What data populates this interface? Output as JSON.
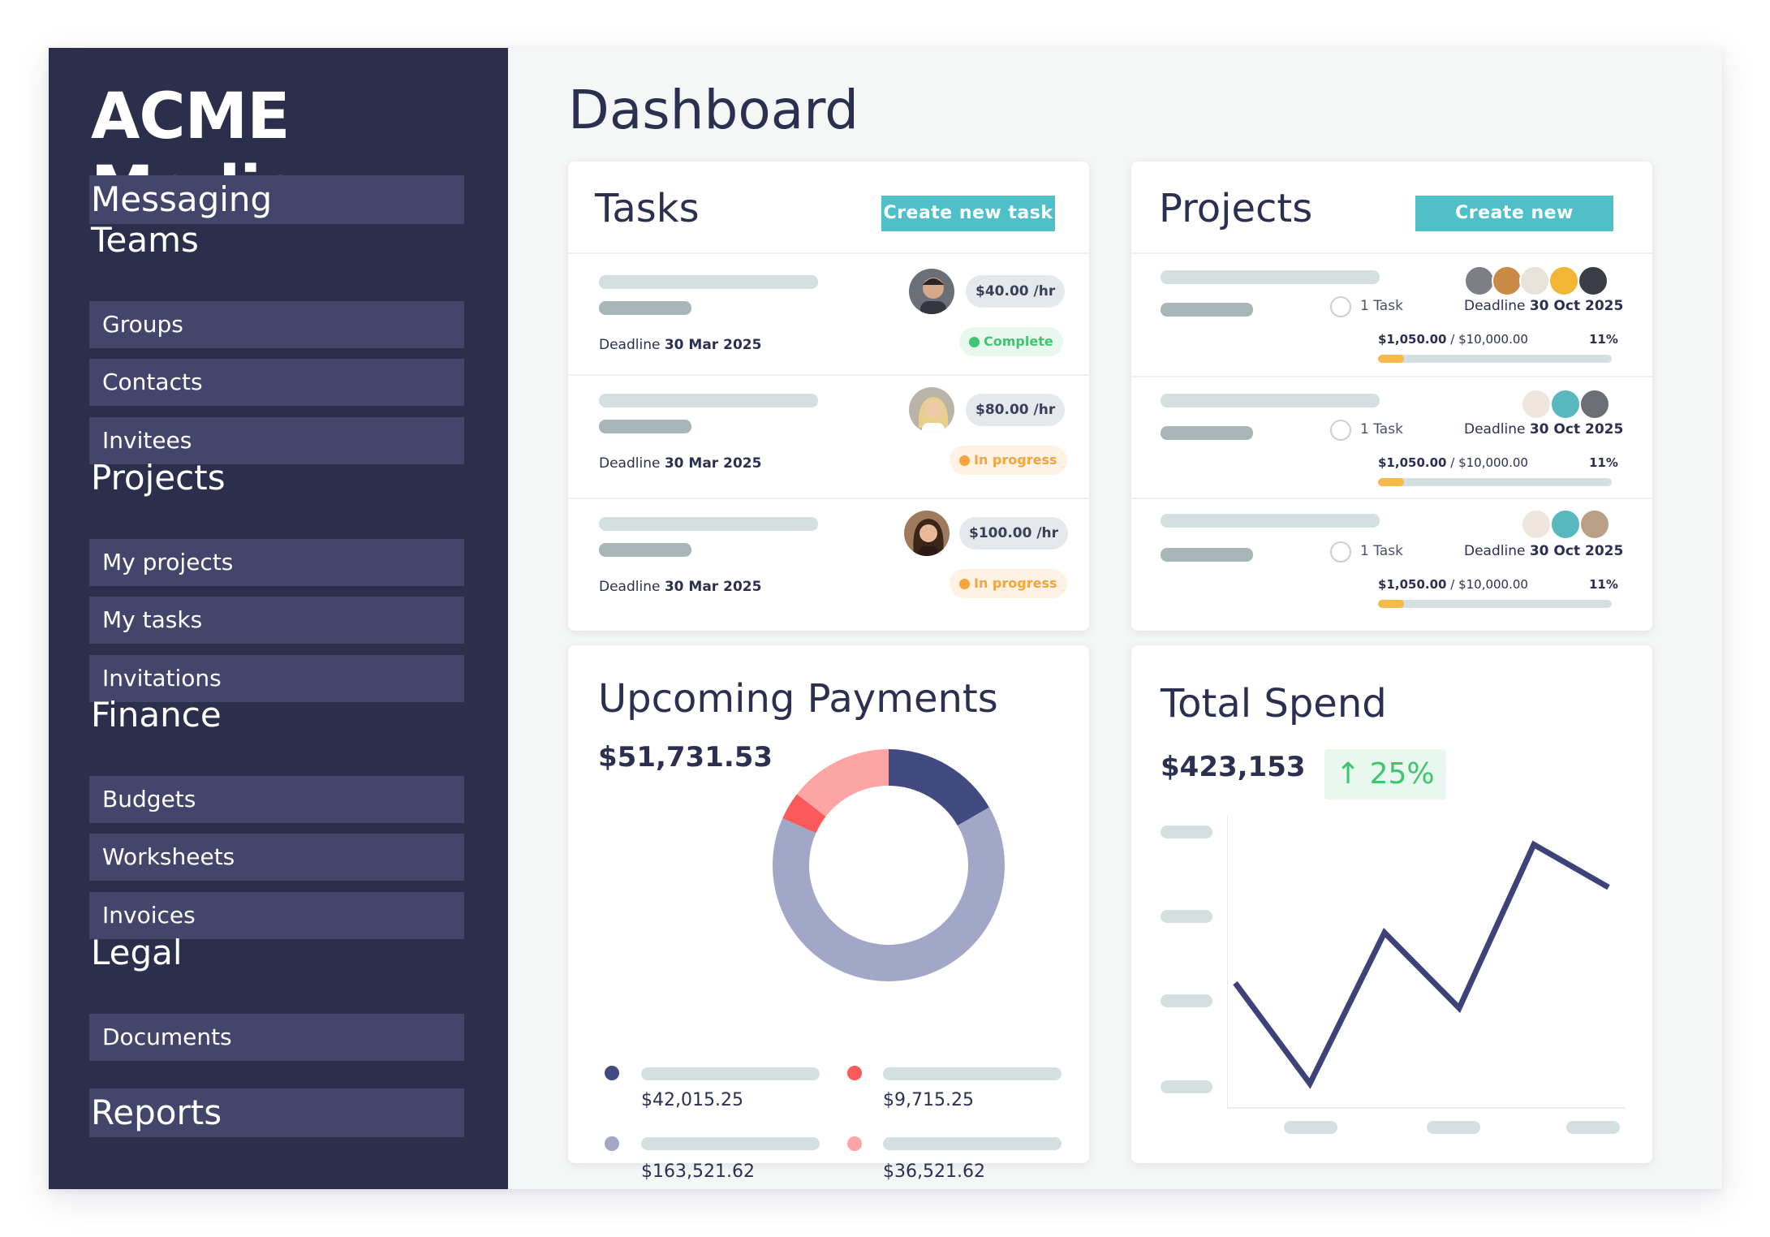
{
  "app": {
    "brand": "ACME Media",
    "page_title": "Dashboard"
  },
  "sidebar": {
    "messaging": "Messaging",
    "teams": "Teams",
    "groups": "Groups",
    "contacts": "Contacts",
    "invitees": "Invitees",
    "projects": "Projects",
    "my_projects": "My projects",
    "my_tasks": "My tasks",
    "invitations": "Invitations",
    "finance": "Finance",
    "budgets": "Budgets",
    "worksheets": "Worksheets",
    "invoices": "Invoices",
    "legal": "Legal",
    "documents": "Documents",
    "reports": "Reports"
  },
  "tasks": {
    "title": "Tasks",
    "create_label": "Create new task",
    "deadline_label": "Deadline",
    "items": [
      {
        "deadline": "30 Mar 2025",
        "rate": "$40.00 /hr",
        "status": "Complete",
        "status_kind": "complete"
      },
      {
        "deadline": "30 Mar 2025",
        "rate": "$80.00 /hr",
        "status": "In progress",
        "status_kind": "progress"
      },
      {
        "deadline": "30 Mar 2025",
        "rate": "$100.00 /hr",
        "status": "In progress",
        "status_kind": "progress"
      }
    ]
  },
  "projects": {
    "title": "Projects",
    "create_label": "Create new project",
    "deadline_label": "Deadline",
    "items": [
      {
        "tasks": "1 Task",
        "deadline": "30 Oct 2025",
        "spent": "$1,050.00",
        "budget": "/ $10,000.00",
        "percent": "11%",
        "progress": 0.11
      },
      {
        "tasks": "1 Task",
        "deadline": "30 Oct 2025",
        "spent": "$1,050.00",
        "budget": "/ $10,000.00",
        "percent": "11%",
        "progress": 0.11
      },
      {
        "tasks": "1 Task",
        "deadline": "30 Oct 2025",
        "spent": "$1,050.00",
        "budget": "/ $10,000.00",
        "percent": "11%",
        "progress": 0.11
      }
    ]
  },
  "payments": {
    "title": "Upcoming Payments",
    "total": "$51,731.53",
    "legend": [
      {
        "value": "$42,015.25",
        "color": "#424a82"
      },
      {
        "value": "$9,715.25",
        "color": "#fb5a5a"
      },
      {
        "value": "$163,521.62",
        "color": "#a3a7c7"
      },
      {
        "value": "$36,521.62",
        "color": "#fda4a4"
      }
    ]
  },
  "spend": {
    "title": "Total Spend",
    "total": "$423,153",
    "growth": "25%",
    "line_color": "#3d4378"
  },
  "chart_data": [
    {
      "type": "pie",
      "title": "Upcoming Payments",
      "values": [
        42015.25,
        163521.62,
        9715.25,
        36521.62
      ],
      "colors": [
        "#424a82",
        "#a3a7c7",
        "#fb5a5a",
        "#fda4a4"
      ],
      "donut": true
    },
    {
      "type": "line",
      "title": "Total Spend",
      "x": [
        0,
        1,
        2,
        3,
        4,
        5
      ],
      "values": [
        40,
        0,
        60,
        30,
        95,
        78
      ],
      "ylim": [
        0,
        100
      ],
      "grid": false
    }
  ]
}
